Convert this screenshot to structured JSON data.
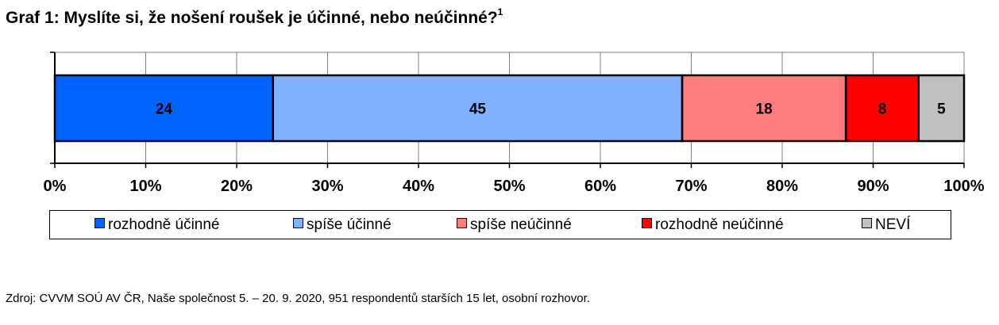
{
  "title": "Graf 1: Myslíte si, že nošení roušek je účinné, nebo neúčinné?",
  "title_footnote": "1",
  "chart_data": {
    "type": "bar",
    "orientation": "horizontal-stacked-100",
    "series": [
      {
        "name": "rozhodně účinné",
        "value": 24,
        "color": "#0063ff"
      },
      {
        "name": "spíše účinné",
        "value": 45,
        "color": "#80b1ff"
      },
      {
        "name": "spíše neúčinné",
        "value": 18,
        "color": "#ff7c7c"
      },
      {
        "name": "rozhodně neúčinné",
        "value": 8,
        "color": "#ff0000"
      },
      {
        "name": "NEVÍ",
        "value": 5,
        "color": "#c0c0c0"
      }
    ],
    "xticks": [
      "0%",
      "10%",
      "20%",
      "30%",
      "40%",
      "50%",
      "60%",
      "70%",
      "80%",
      "90%",
      "100%"
    ],
    "xlim": [
      0,
      100
    ],
    "grid": true,
    "legend_position": "bottom"
  },
  "source": "Zdroj: CVVM SOÚ AV ČR, Naše společnost 5. – 20. 9. 2020, 951 respondentů starších 15 let, osobní rozhovor."
}
